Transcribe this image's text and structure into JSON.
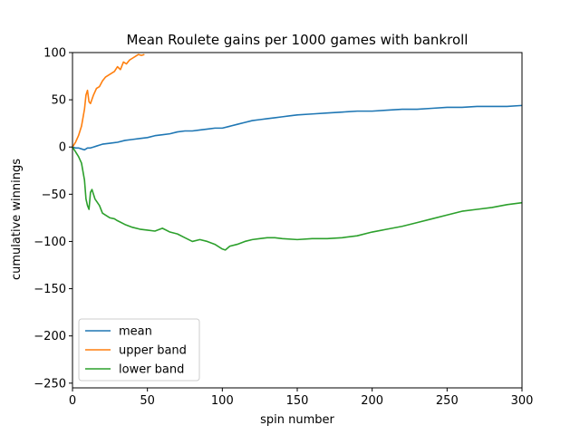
{
  "chart_data": {
    "type": "line",
    "title": "Mean Roulete gains per 1000 games with bankroll",
    "xlabel": "spin number",
    "ylabel": "cumulative winnings",
    "xlim": [
      0,
      300
    ],
    "ylim": [
      -255,
      100
    ],
    "xticks": [
      0,
      50,
      100,
      150,
      200,
      250,
      300
    ],
    "yticks": [
      -250,
      -200,
      -150,
      -100,
      -50,
      0,
      50,
      100
    ],
    "ytick_labels": [
      "−250",
      "−200",
      "−150",
      "−100",
      "−50",
      "0",
      "50",
      "100"
    ],
    "grid": false,
    "legend_position": "lower-left",
    "series": [
      {
        "name": "mean",
        "color": "#1f77b4",
        "x": [
          0,
          2,
          4,
          6,
          8,
          10,
          12,
          14,
          16,
          18,
          20,
          25,
          30,
          35,
          40,
          45,
          50,
          55,
          60,
          65,
          70,
          75,
          80,
          85,
          90,
          95,
          100,
          105,
          110,
          115,
          120,
          125,
          130,
          135,
          140,
          145,
          150,
          160,
          170,
          180,
          190,
          200,
          210,
          220,
          230,
          240,
          250,
          260,
          270,
          280,
          290,
          300
        ],
        "y": [
          0,
          -1,
          -1,
          -2,
          -3,
          -1,
          -1,
          0,
          1,
          2,
          3,
          4,
          5,
          7,
          8,
          9,
          10,
          12,
          13,
          14,
          16,
          17,
          17,
          18,
          19,
          20,
          20,
          22,
          24,
          26,
          28,
          29,
          30,
          31,
          32,
          33,
          34,
          35,
          36,
          37,
          38,
          38,
          39,
          40,
          40,
          41,
          42,
          42,
          43,
          43,
          43,
          44
        ]
      },
      {
        "name": "upper band",
        "color": "#ff7f0e",
        "x": [
          0,
          2,
          4,
          6,
          8,
          9,
          10,
          11,
          12,
          14,
          16,
          18,
          20,
          22,
          25,
          28,
          30,
          32,
          34,
          36,
          38,
          40,
          42,
          44,
          46,
          48
        ],
        "y": [
          0,
          5,
          12,
          22,
          40,
          55,
          60,
          48,
          46,
          55,
          62,
          64,
          70,
          74,
          77,
          80,
          85,
          82,
          90,
          88,
          92,
          94,
          96,
          98,
          97,
          98
        ]
      },
      {
        "name": "lower band",
        "color": "#2ca02c",
        "x": [
          0,
          2,
          4,
          6,
          8,
          9,
          10,
          11,
          12,
          13,
          15,
          18,
          20,
          22,
          25,
          28,
          30,
          35,
          40,
          45,
          50,
          55,
          60,
          65,
          70,
          75,
          80,
          85,
          90,
          95,
          100,
          102,
          105,
          110,
          115,
          120,
          125,
          130,
          135,
          140,
          150,
          160,
          170,
          180,
          190,
          200,
          210,
          220,
          230,
          240,
          250,
          260,
          270,
          280,
          290,
          300
        ],
        "y": [
          0,
          -5,
          -10,
          -17,
          -35,
          -55,
          -62,
          -66,
          -48,
          -45,
          -55,
          -62,
          -70,
          -72,
          -75,
          -76,
          -78,
          -82,
          -85,
          -87,
          -88,
          -89,
          -86,
          -90,
          -92,
          -96,
          -100,
          -98,
          -100,
          -103,
          -108,
          -109,
          -105,
          -103,
          -100,
          -98,
          -97,
          -96,
          -96,
          -97,
          -98,
          -97,
          -97,
          -96,
          -94,
          -90,
          -87,
          -84,
          -80,
          -76,
          -72,
          -68,
          -66,
          -64,
          -61,
          -59
        ]
      }
    ]
  }
}
